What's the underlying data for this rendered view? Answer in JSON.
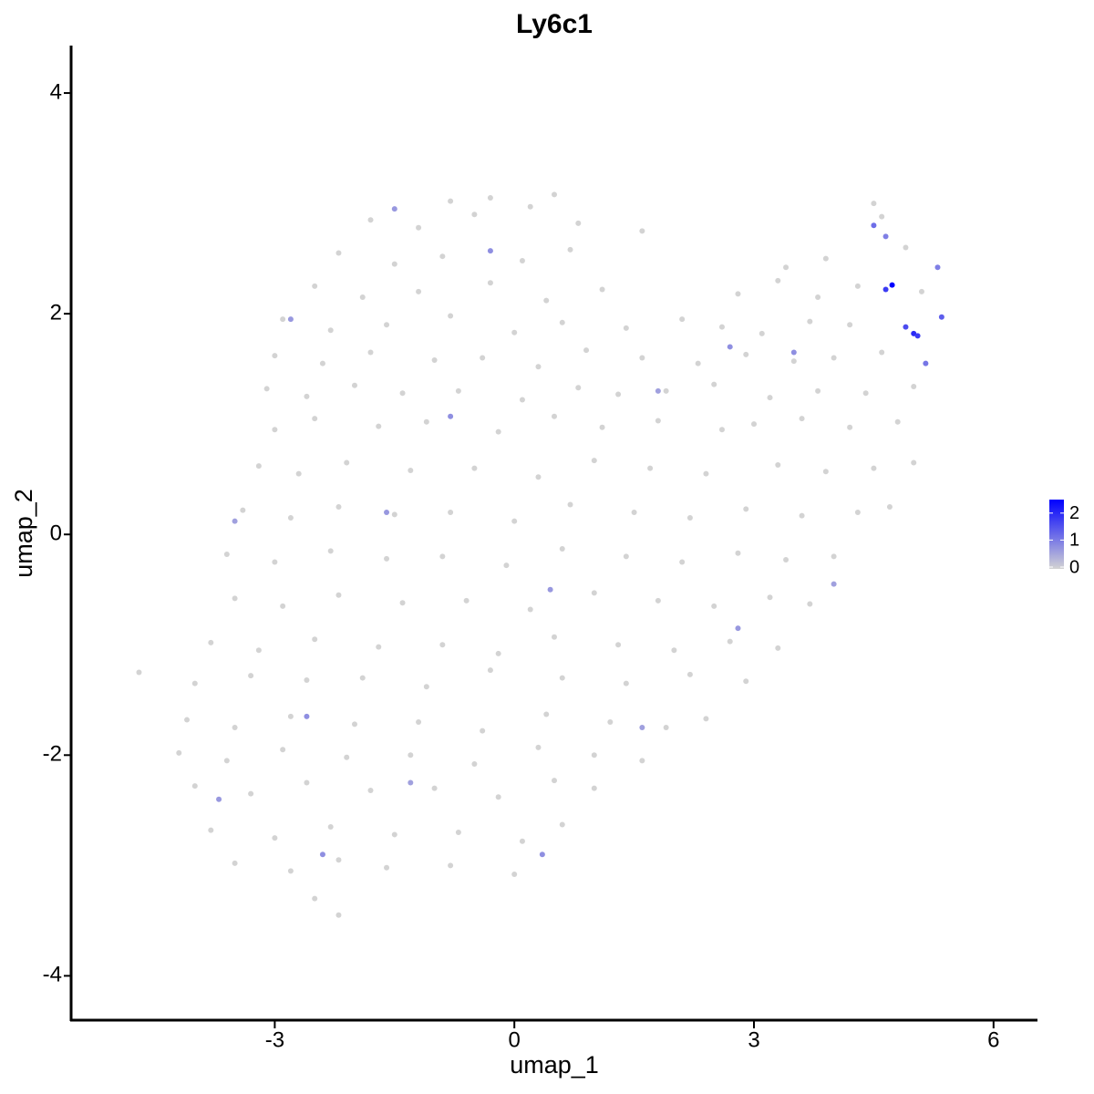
{
  "chart_data": {
    "type": "scatter",
    "title": "Ly6c1",
    "x_label": "umap_1",
    "y_label": "umap_2",
    "xlim": [
      -5.55,
      6.55
    ],
    "xticks": [
      -3,
      0,
      3,
      6
    ],
    "ylim": [
      -4.41,
      4.43
    ],
    "yticks": [
      -4,
      -2,
      0,
      2,
      4
    ],
    "low_color": "#d3d3d3",
    "high_color": "#0000ff",
    "color_lim": [
      0,
      2.5
    ],
    "color_ticks": [
      0,
      1,
      2
    ],
    "x": [
      -0.8,
      -0.3,
      0.2,
      0.5,
      4.5,
      -1.8,
      -1.2,
      -0.5,
      0.8,
      1.6,
      4.6,
      -2.2,
      -1.5,
      -0.9,
      0.1,
      0.7,
      3.4,
      3.9,
      4.9,
      -2.5,
      -1.9,
      -1.2,
      -0.3,
      0.4,
      1.1,
      2.8,
      3.3,
      3.8,
      4.3,
      5.1,
      -2.9,
      -2.3,
      -1.6,
      -0.8,
      0.0,
      0.6,
      1.4,
      2.1,
      2.6,
      3.1,
      3.7,
      4.2,
      -3.0,
      -2.4,
      -1.8,
      -1.0,
      -0.4,
      0.3,
      0.9,
      1.6,
      2.3,
      2.9,
      3.5,
      4.0,
      4.6,
      -3.1,
      -2.6,
      -2.0,
      -1.4,
      -0.7,
      0.1,
      0.8,
      1.3,
      1.9,
      2.5,
      3.2,
      3.8,
      4.4,
      5.0,
      -3.0,
      -2.5,
      -1.7,
      -1.1,
      -0.2,
      0.5,
      1.1,
      1.8,
      2.6,
      3.0,
      3.6,
      4.2,
      4.8,
      -3.2,
      -2.7,
      -2.1,
      -1.3,
      -0.5,
      0.3,
      1.0,
      1.7,
      2.4,
      3.3,
      3.9,
      4.5,
      5.0,
      -3.4,
      -2.8,
      -2.2,
      -1.5,
      -0.8,
      0.0,
      0.7,
      1.5,
      2.2,
      2.9,
      3.6,
      4.3,
      4.7,
      -3.6,
      -3.0,
      -2.3,
      -1.6,
      -0.9,
      -0.1,
      0.6,
      1.4,
      2.1,
      2.8,
      3.4,
      4.0,
      -3.5,
      -2.9,
      -2.2,
      -1.4,
      -0.6,
      0.2,
      1.0,
      1.8,
      2.5,
      3.2,
      3.7,
      -3.8,
      -3.2,
      -2.5,
      -1.7,
      -0.9,
      -0.2,
      0.5,
      1.3,
      2.0,
      2.7,
      3.3,
      -4.7,
      -4.0,
      -3.3,
      -2.6,
      -1.9,
      -1.1,
      -0.3,
      0.6,
      1.4,
      2.2,
      2.9,
      -4.1,
      -3.5,
      -2.8,
      -2.0,
      -1.2,
      -0.4,
      0.4,
      1.2,
      1.9,
      2.4,
      -4.2,
      -3.6,
      -2.9,
      -2.1,
      -1.3,
      -0.5,
      0.3,
      1.0,
      1.6,
      -4.0,
      -3.3,
      -2.6,
      -1.8,
      -1.0,
      -0.2,
      0.5,
      1.0,
      -3.8,
      -3.0,
      -2.3,
      -1.5,
      -0.7,
      0.1,
      0.6,
      -3.5,
      -2.8,
      -2.2,
      -1.6,
      -0.8,
      0.0,
      -2.5,
      -2.2,
      4.65,
      4.73,
      5.0,
      5.05,
      4.9,
      5.35,
      4.5,
      4.65,
      5.15,
      5.3,
      -0.3,
      -1.5,
      -2.8,
      -0.8,
      -1.6,
      0.45,
      -3.5,
      -2.6,
      -2.4,
      0.35,
      2.8,
      3.5,
      2.7,
      1.6,
      -1.3,
      4.0,
      1.8,
      -3.7
    ],
    "y": [
      3.02,
      3.05,
      2.97,
      3.08,
      3.0,
      2.85,
      2.78,
      2.9,
      2.82,
      2.75,
      2.88,
      2.55,
      2.45,
      2.52,
      2.48,
      2.58,
      2.42,
      2.5,
      2.6,
      2.25,
      2.15,
      2.2,
      2.28,
      2.12,
      2.22,
      2.18,
      2.3,
      2.15,
      2.25,
      2.2,
      1.95,
      1.85,
      1.9,
      1.98,
      1.83,
      1.92,
      1.87,
      1.95,
      1.88,
      1.82,
      1.93,
      1.9,
      1.62,
      1.55,
      1.65,
      1.58,
      1.6,
      1.52,
      1.67,
      1.6,
      1.55,
      1.63,
      1.57,
      1.6,
      1.65,
      1.32,
      1.25,
      1.35,
      1.28,
      1.3,
      1.22,
      1.33,
      1.27,
      1.3,
      1.36,
      1.24,
      1.3,
      1.28,
      1.34,
      0.95,
      1.05,
      0.98,
      1.02,
      0.93,
      1.07,
      0.97,
      1.03,
      0.95,
      1.0,
      1.05,
      0.97,
      1.02,
      0.62,
      0.55,
      0.65,
      0.58,
      0.6,
      0.52,
      0.67,
      0.6,
      0.55,
      0.63,
      0.57,
      0.6,
      0.65,
      0.22,
      0.15,
      0.25,
      0.18,
      0.2,
      0.12,
      0.27,
      0.2,
      0.15,
      0.23,
      0.17,
      0.2,
      0.25,
      -0.18,
      -0.25,
      -0.15,
      -0.22,
      -0.2,
      -0.28,
      -0.13,
      -0.2,
      -0.25,
      -0.17,
      -0.23,
      -0.2,
      -0.58,
      -0.65,
      -0.55,
      -0.62,
      -0.6,
      -0.68,
      -0.53,
      -0.6,
      -0.65,
      -0.57,
      -0.63,
      -0.98,
      -1.05,
      -0.95,
      -1.02,
      -1.0,
      -1.08,
      -0.93,
      -1.0,
      -1.05,
      -0.97,
      -1.03,
      -1.25,
      -1.35,
      -1.28,
      -1.32,
      -1.3,
      -1.38,
      -1.23,
      -1.3,
      -1.35,
      -1.27,
      -1.33,
      -1.68,
      -1.75,
      -1.65,
      -1.72,
      -1.7,
      -1.78,
      -1.63,
      -1.7,
      -1.75,
      -1.67,
      -1.98,
      -2.05,
      -1.95,
      -2.02,
      -2.0,
      -2.08,
      -1.93,
      -2.0,
      -2.05,
      -2.28,
      -2.35,
      -2.25,
      -2.32,
      -2.3,
      -2.38,
      -2.23,
      -2.3,
      -2.68,
      -2.75,
      -2.65,
      -2.72,
      -2.7,
      -2.78,
      -2.63,
      -2.98,
      -3.05,
      -2.95,
      -3.02,
      -3.0,
      -3.08,
      -3.3,
      -3.45,
      2.22,
      2.26,
      1.82,
      1.8,
      1.88,
      1.97,
      2.8,
      2.7,
      1.55,
      2.42,
      2.57,
      2.95,
      1.95,
      1.07,
      0.2,
      -0.5,
      0.12,
      -1.65,
      -2.9,
      -2.9,
      -0.85,
      1.65,
      1.7,
      -1.75,
      -2.25,
      -0.45,
      1.3,
      -2.4
    ],
    "expression": [
      0,
      0,
      0,
      0,
      0,
      0,
      0,
      0,
      0,
      0,
      0,
      0,
      0,
      0,
      0,
      0,
      0,
      0,
      0,
      0,
      0,
      0,
      0,
      0,
      0,
      0,
      0,
      0,
      0,
      0,
      0,
      0,
      0,
      0,
      0,
      0,
      0,
      0,
      0,
      0,
      0,
      0,
      0,
      0,
      0,
      0,
      0,
      0,
      0,
      0,
      0,
      0,
      0,
      0,
      0,
      0,
      0,
      0,
      0,
      0,
      0,
      0,
      0,
      0,
      0,
      0,
      0,
      0,
      0,
      0,
      0,
      0,
      0,
      0,
      0,
      0,
      0,
      0,
      0,
      0,
      0,
      0,
      0,
      0,
      0,
      0,
      0,
      0,
      0,
      0,
      0,
      0,
      0,
      0,
      0,
      0,
      0,
      0,
      0,
      0,
      0,
      0,
      0,
      0,
      0,
      0,
      0,
      0,
      0,
      0,
      0,
      0,
      0,
      0,
      0,
      0,
      0,
      0,
      0,
      0,
      0,
      0,
      0,
      0,
      0,
      0,
      0,
      0,
      0,
      0,
      0,
      0,
      0,
      0,
      0,
      0,
      0,
      0,
      0,
      0,
      0,
      0,
      0,
      0,
      0,
      0,
      0,
      0,
      0,
      0,
      0,
      0,
      0,
      0,
      0,
      0,
      0,
      0,
      0,
      0,
      0,
      0,
      0,
      0,
      0,
      0,
      0,
      0,
      0,
      0,
      0,
      0,
      0,
      0,
      0,
      0,
      0,
      0,
      0,
      0,
      0,
      0,
      0,
      0,
      0,
      0,
      0,
      0,
      0,
      0,
      0,
      0,
      0,
      0,
      0,
      1.8,
      2.5,
      2.0,
      1.8,
      1.6,
      1.4,
      1.2,
      1.0,
      1.1,
      1.0,
      0.8,
      0.7,
      0.7,
      0.8,
      0.7,
      0.7,
      0.6,
      0.8,
      0.8,
      0.8,
      0.7,
      0.8,
      0.8,
      0.6,
      0.6,
      0.6,
      0.6,
      0.7
    ]
  }
}
